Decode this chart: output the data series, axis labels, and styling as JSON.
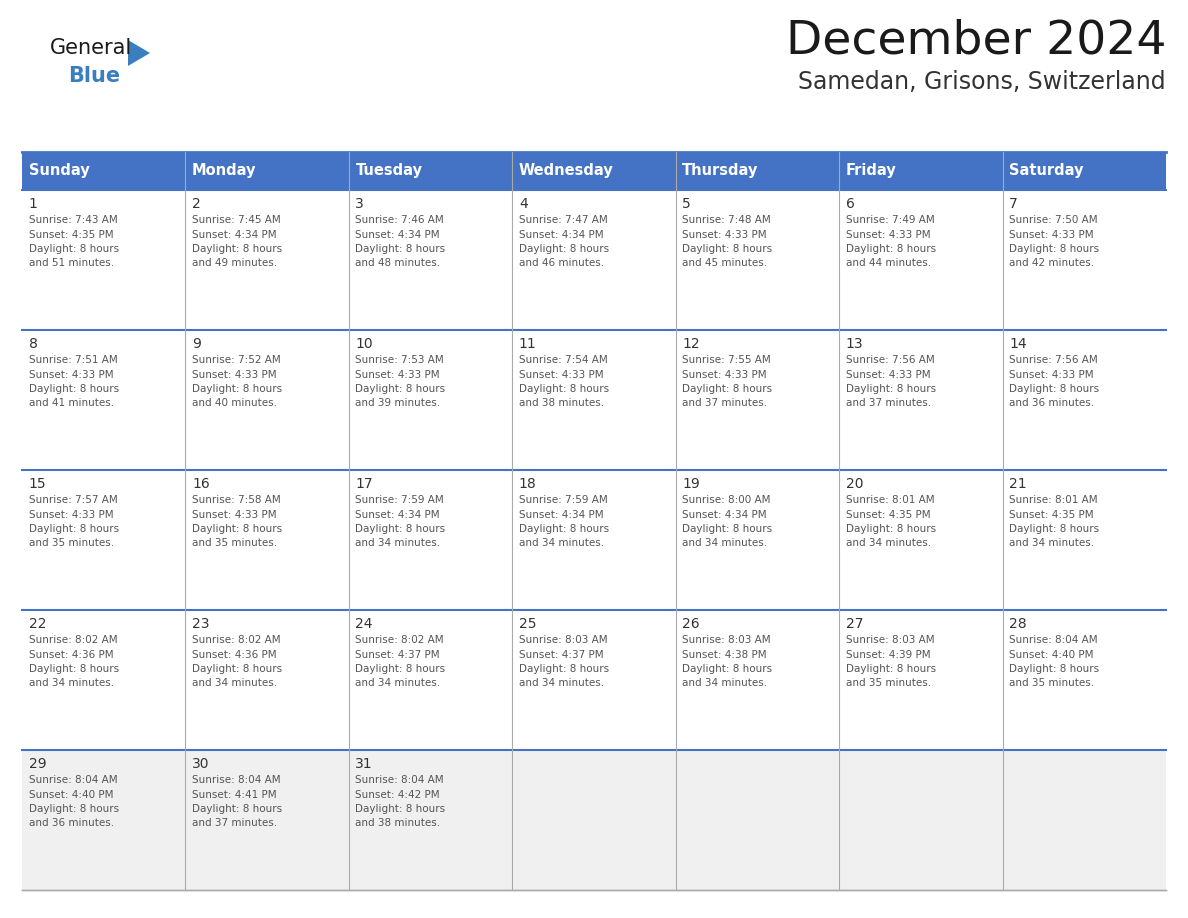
{
  "title": "December 2024",
  "subtitle": "Samedan, Grisons, Switzerland",
  "days_of_week": [
    "Sunday",
    "Monday",
    "Tuesday",
    "Wednesday",
    "Thursday",
    "Friday",
    "Saturday"
  ],
  "header_bg": "#4472C4",
  "header_text": "#FFFFFF",
  "cell_bg": "#FFFFFF",
  "cell_border": "#AAAAAA",
  "row_border": "#4472C4",
  "day_num_color": "#333333",
  "info_color": "#555555",
  "title_color": "#1a1a1a",
  "subtitle_color": "#333333",
  "logo_general_color": "#1a1a1a",
  "logo_blue_color": "#3B7EC0",
  "last_row_bg": "#F0F0F0",
  "calendar_data": [
    [
      {
        "day": 1,
        "sunrise": "7:43 AM",
        "sunset": "4:35 PM",
        "daylight": "8 hours and 51 minutes."
      },
      {
        "day": 2,
        "sunrise": "7:45 AM",
        "sunset": "4:34 PM",
        "daylight": "8 hours and 49 minutes."
      },
      {
        "day": 3,
        "sunrise": "7:46 AM",
        "sunset": "4:34 PM",
        "daylight": "8 hours and 48 minutes."
      },
      {
        "day": 4,
        "sunrise": "7:47 AM",
        "sunset": "4:34 PM",
        "daylight": "8 hours and 46 minutes."
      },
      {
        "day": 5,
        "sunrise": "7:48 AM",
        "sunset": "4:33 PM",
        "daylight": "8 hours and 45 minutes."
      },
      {
        "day": 6,
        "sunrise": "7:49 AM",
        "sunset": "4:33 PM",
        "daylight": "8 hours and 44 minutes."
      },
      {
        "day": 7,
        "sunrise": "7:50 AM",
        "sunset": "4:33 PM",
        "daylight": "8 hours and 42 minutes."
      }
    ],
    [
      {
        "day": 8,
        "sunrise": "7:51 AM",
        "sunset": "4:33 PM",
        "daylight": "8 hours and 41 minutes."
      },
      {
        "day": 9,
        "sunrise": "7:52 AM",
        "sunset": "4:33 PM",
        "daylight": "8 hours and 40 minutes."
      },
      {
        "day": 10,
        "sunrise": "7:53 AM",
        "sunset": "4:33 PM",
        "daylight": "8 hours and 39 minutes."
      },
      {
        "day": 11,
        "sunrise": "7:54 AM",
        "sunset": "4:33 PM",
        "daylight": "8 hours and 38 minutes."
      },
      {
        "day": 12,
        "sunrise": "7:55 AM",
        "sunset": "4:33 PM",
        "daylight": "8 hours and 37 minutes."
      },
      {
        "day": 13,
        "sunrise": "7:56 AM",
        "sunset": "4:33 PM",
        "daylight": "8 hours and 37 minutes."
      },
      {
        "day": 14,
        "sunrise": "7:56 AM",
        "sunset": "4:33 PM",
        "daylight": "8 hours and 36 minutes."
      }
    ],
    [
      {
        "day": 15,
        "sunrise": "7:57 AM",
        "sunset": "4:33 PM",
        "daylight": "8 hours and 35 minutes."
      },
      {
        "day": 16,
        "sunrise": "7:58 AM",
        "sunset": "4:33 PM",
        "daylight": "8 hours and 35 minutes."
      },
      {
        "day": 17,
        "sunrise": "7:59 AM",
        "sunset": "4:34 PM",
        "daylight": "8 hours and 34 minutes."
      },
      {
        "day": 18,
        "sunrise": "7:59 AM",
        "sunset": "4:34 PM",
        "daylight": "8 hours and 34 minutes."
      },
      {
        "day": 19,
        "sunrise": "8:00 AM",
        "sunset": "4:34 PM",
        "daylight": "8 hours and 34 minutes."
      },
      {
        "day": 20,
        "sunrise": "8:01 AM",
        "sunset": "4:35 PM",
        "daylight": "8 hours and 34 minutes."
      },
      {
        "day": 21,
        "sunrise": "8:01 AM",
        "sunset": "4:35 PM",
        "daylight": "8 hours and 34 minutes."
      }
    ],
    [
      {
        "day": 22,
        "sunrise": "8:02 AM",
        "sunset": "4:36 PM",
        "daylight": "8 hours and 34 minutes."
      },
      {
        "day": 23,
        "sunrise": "8:02 AM",
        "sunset": "4:36 PM",
        "daylight": "8 hours and 34 minutes."
      },
      {
        "day": 24,
        "sunrise": "8:02 AM",
        "sunset": "4:37 PM",
        "daylight": "8 hours and 34 minutes."
      },
      {
        "day": 25,
        "sunrise": "8:03 AM",
        "sunset": "4:37 PM",
        "daylight": "8 hours and 34 minutes."
      },
      {
        "day": 26,
        "sunrise": "8:03 AM",
        "sunset": "4:38 PM",
        "daylight": "8 hours and 34 minutes."
      },
      {
        "day": 27,
        "sunrise": "8:03 AM",
        "sunset": "4:39 PM",
        "daylight": "8 hours and 35 minutes."
      },
      {
        "day": 28,
        "sunrise": "8:04 AM",
        "sunset": "4:40 PM",
        "daylight": "8 hours and 35 minutes."
      }
    ],
    [
      {
        "day": 29,
        "sunrise": "8:04 AM",
        "sunset": "4:40 PM",
        "daylight": "8 hours and 36 minutes."
      },
      {
        "day": 30,
        "sunrise": "8:04 AM",
        "sunset": "4:41 PM",
        "daylight": "8 hours and 37 minutes."
      },
      {
        "day": 31,
        "sunrise": "8:04 AM",
        "sunset": "4:42 PM",
        "daylight": "8 hours and 38 minutes."
      },
      null,
      null,
      null,
      null
    ]
  ]
}
